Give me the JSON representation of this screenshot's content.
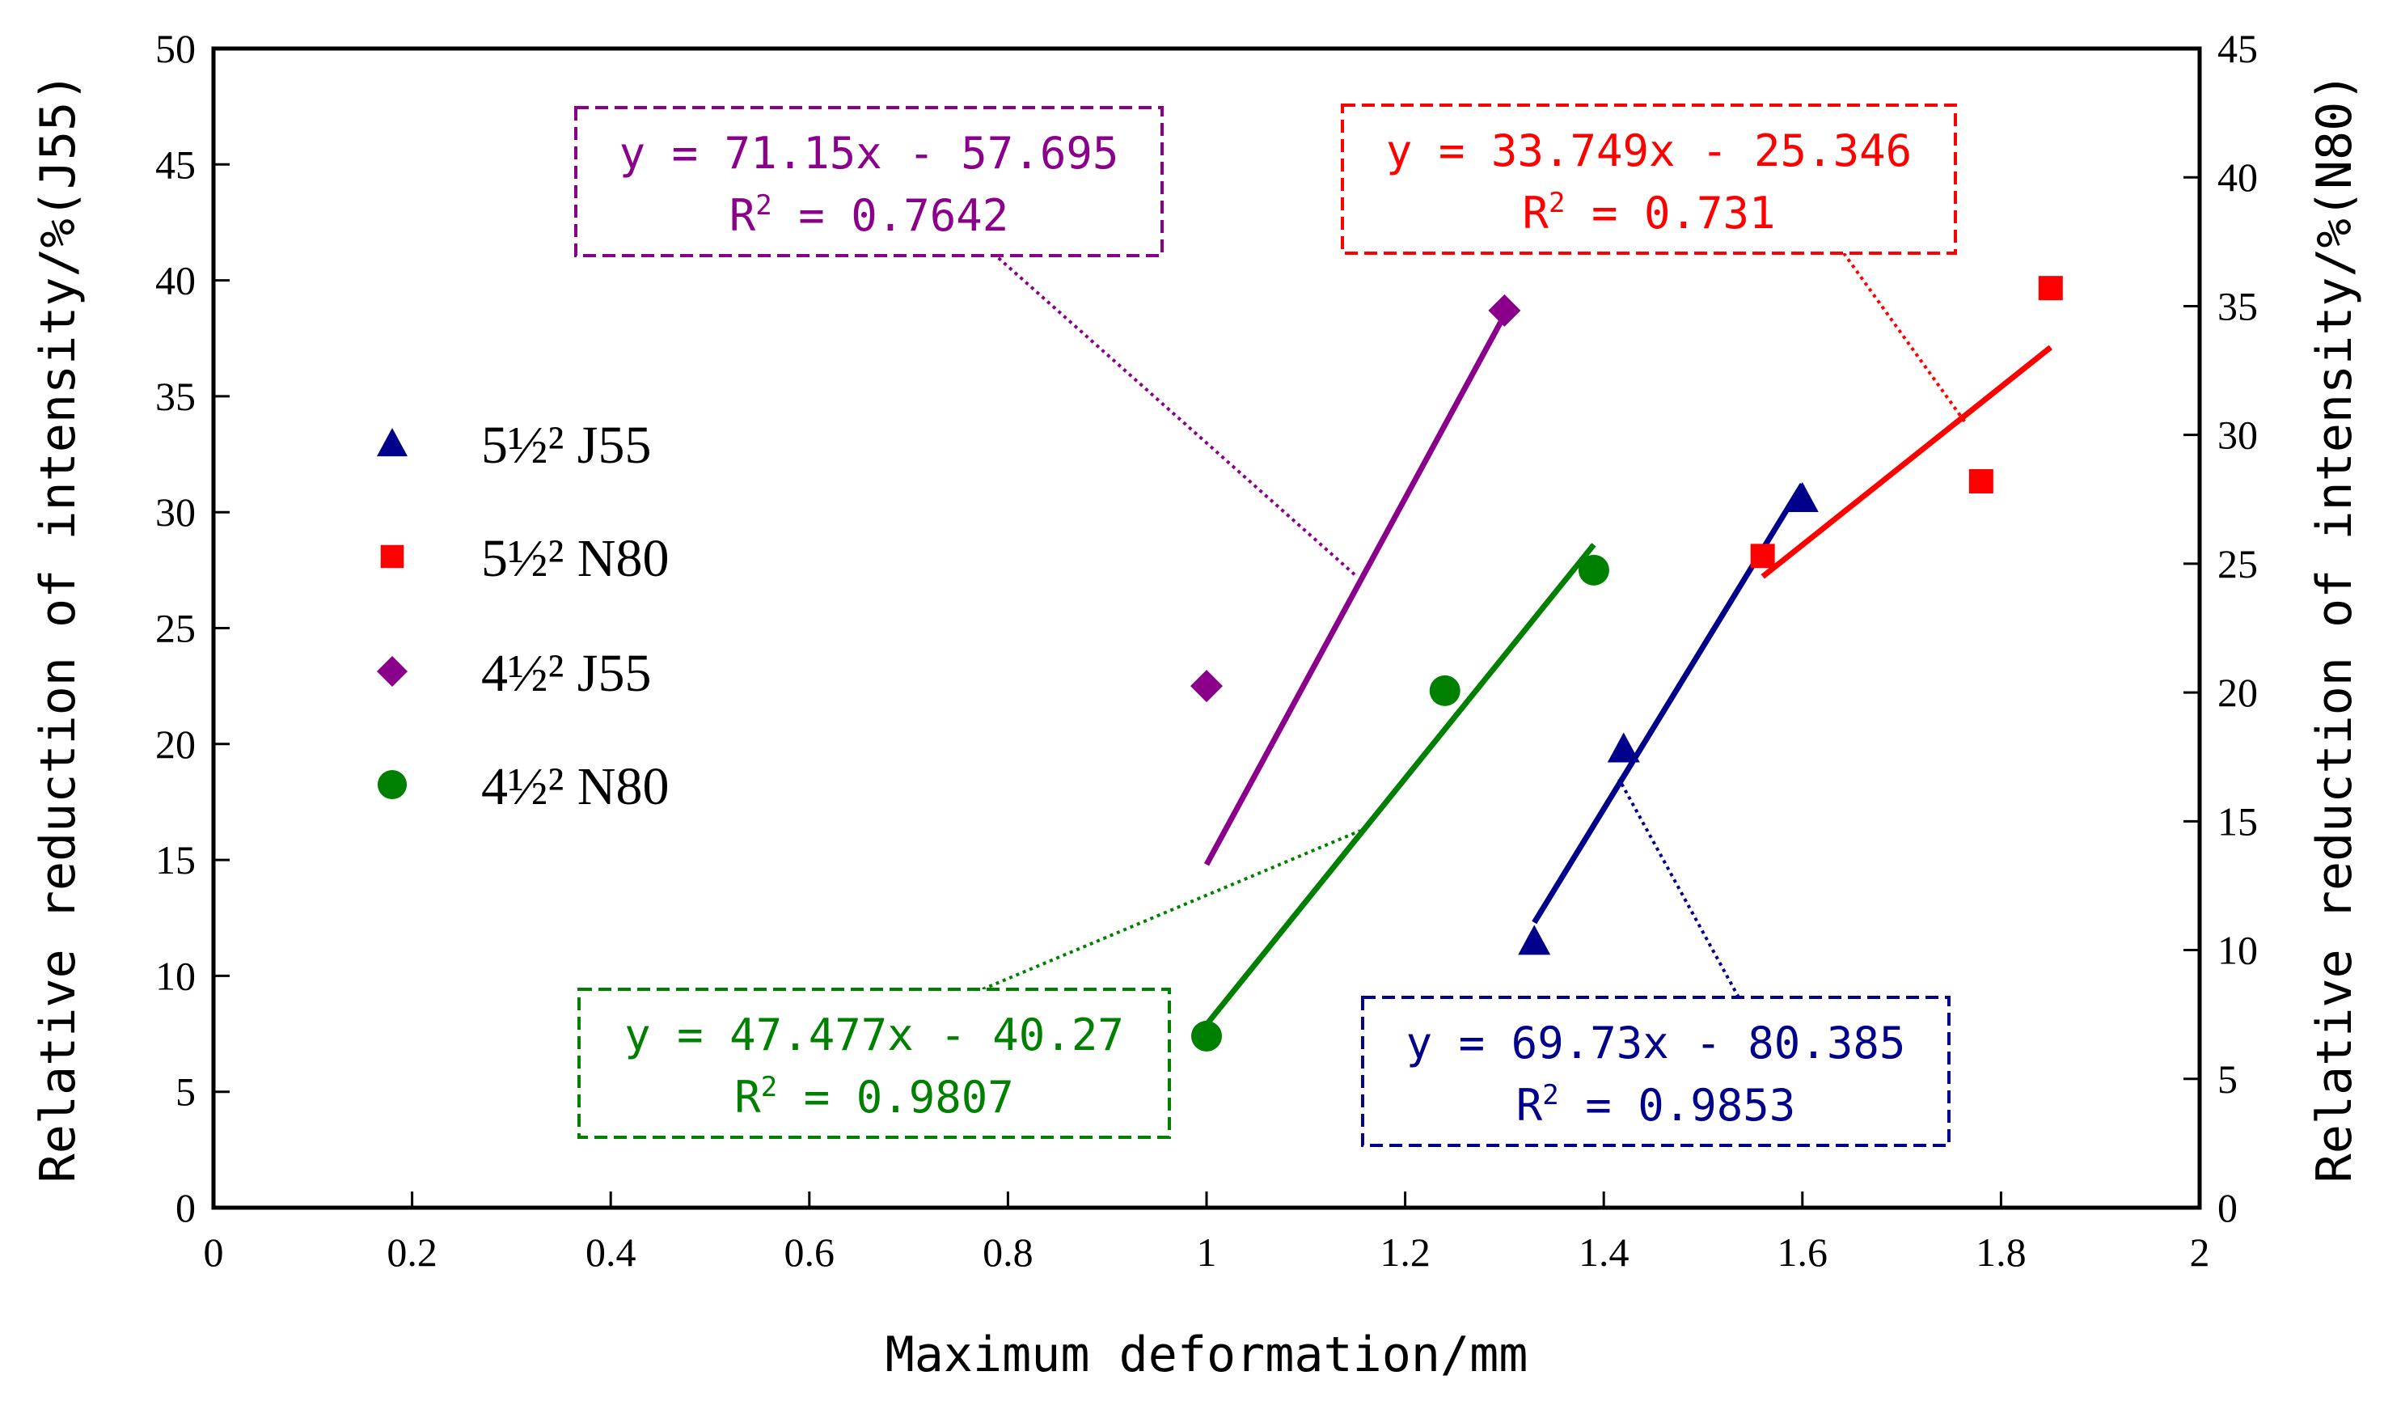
{
  "chart_data": {
    "type": "scatter",
    "xlabel": "Maximum deformation/mm",
    "ylabel_left": "Relative reduction of intensity/%(J55)",
    "ylabel_right": "Relative reduction of intensity/%(N80)",
    "xlim": [
      0,
      2
    ],
    "ylim_left": [
      0,
      50
    ],
    "ylim_right": [
      0,
      45
    ],
    "x_ticks": [
      "0",
      "0.2",
      "0.4",
      "0.6",
      "0.8",
      "1",
      "1.2",
      "1.4",
      "1.6",
      "1.8",
      "2"
    ],
    "y_left_ticks": [
      "0",
      "5",
      "10",
      "15",
      "20",
      "25",
      "30",
      "35",
      "40",
      "45",
      "50"
    ],
    "y_right_ticks": [
      "0",
      "5",
      "10",
      "15",
      "20",
      "25",
      "30",
      "35",
      "40",
      "45"
    ],
    "series": [
      {
        "name": "5½² J55",
        "key": "j55_55",
        "color": "#00008B",
        "marker": "triangle",
        "axis": "left",
        "points": [
          [
            1.33,
            11.5
          ],
          [
            1.42,
            19.8
          ],
          [
            1.6,
            30.6
          ]
        ],
        "fit": {
          "x_range": [
            1.33,
            1.6
          ],
          "y_range": [
            12.3,
            31.2
          ]
        },
        "equation": "y = 69.73x - 80.385",
        "r2_label": "R",
        "r2_value": " = 0.9853"
      },
      {
        "name": "5½² N80",
        "key": "n80_55",
        "color": "#FF0000",
        "marker": "square",
        "axis": "right",
        "points": [
          [
            1.56,
            25.3
          ],
          [
            1.78,
            28.2
          ],
          [
            1.85,
            35.7
          ]
        ],
        "fit": {
          "x_range": [
            1.56,
            1.85
          ],
          "y_range": [
            24.5,
            33.4
          ]
        },
        "equation": "y = 33.749x - 25.346",
        "r2_label": "R",
        "r2_value": " = 0.731"
      },
      {
        "name": "4½² J55",
        "key": "j55_45",
        "color": "#8B008B",
        "marker": "diamond",
        "axis": "left",
        "points": [
          [
            1.0,
            22.5
          ],
          [
            1.3,
            38.7
          ]
        ],
        "fit": {
          "x_range": [
            1.0,
            1.3
          ],
          "y_range": [
            14.8,
            38.5
          ]
        },
        "equation": "y = 71.15x - 57.695",
        "r2_label": "R",
        "r2_value": " = 0.7642"
      },
      {
        "name": "4½² N80",
        "key": "n80_45",
        "color": "#008000",
        "marker": "circle",
        "axis": "left",
        "points": [
          [
            1.0,
            7.4
          ],
          [
            1.24,
            22.3
          ],
          [
            1.39,
            27.5
          ]
        ],
        "fit": {
          "x_range": [
            1.0,
            1.39
          ],
          "y_range": [
            7.9,
            28.6
          ]
        },
        "equation": "y = 47.477x - 40.27",
        "r2_label": "R",
        "r2_value": " = 0.9807"
      }
    ],
    "legend": [
      "5½² J55",
      "5½² N80",
      "4½² J55",
      "4½² N80"
    ],
    "grid": false
  }
}
